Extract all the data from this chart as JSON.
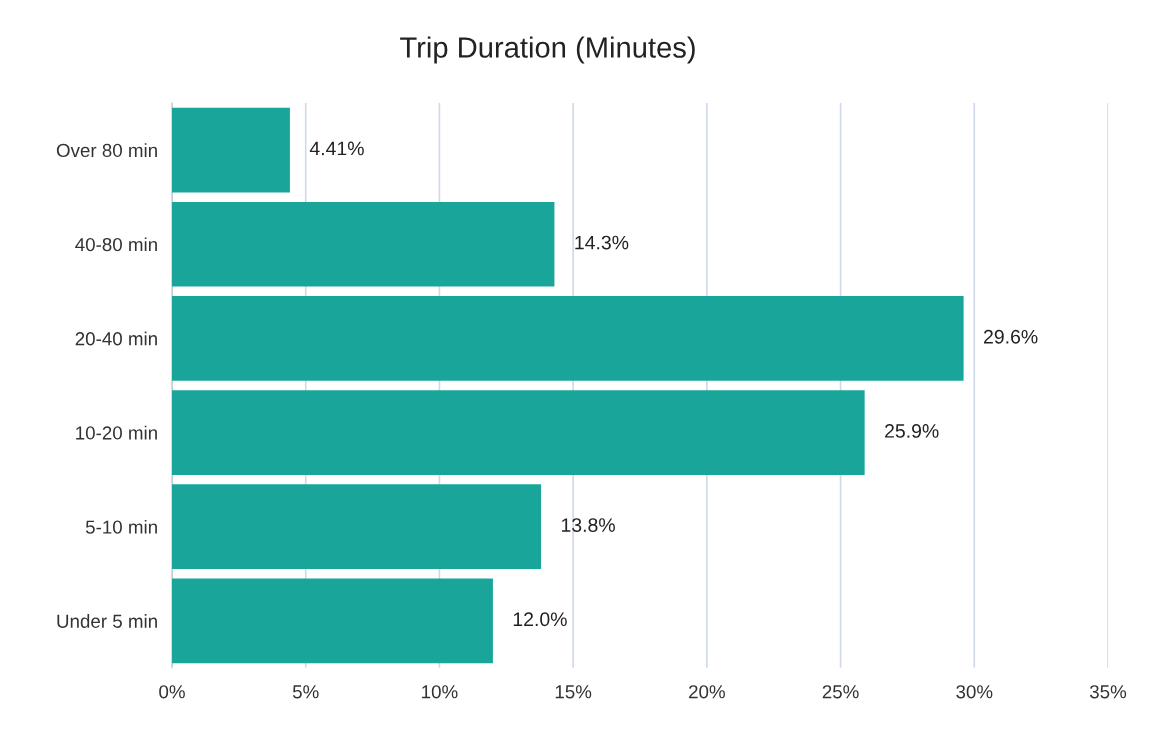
{
  "chart_data": {
    "type": "bar",
    "orientation": "horizontal",
    "title": "Trip Duration (Minutes)",
    "categories": [
      "Over 80 min",
      "40-80 min",
      "20-40 min",
      "10-20 min",
      "5-10 min",
      "Under 5 min"
    ],
    "values": [
      4.41,
      14.3,
      29.6,
      25.9,
      13.8,
      12.0
    ],
    "value_labels": [
      "4.41%",
      "14.3%",
      "29.6%",
      "25.9%",
      "13.8%",
      "12.0%"
    ],
    "color": "#19a59a",
    "xlim": [
      0,
      35
    ],
    "xticks": [
      {
        "value": 0,
        "label": "0%"
      },
      {
        "value": 5,
        "label": "5%"
      },
      {
        "value": 10,
        "label": "10%"
      },
      {
        "value": 15,
        "label": "15%"
      },
      {
        "value": 20,
        "label": "20%"
      },
      {
        "value": 25,
        "label": "25%"
      },
      {
        "value": 30,
        "label": "30%"
      },
      {
        "value": 35,
        "label": "35%"
      }
    ],
    "grid": "x"
  }
}
